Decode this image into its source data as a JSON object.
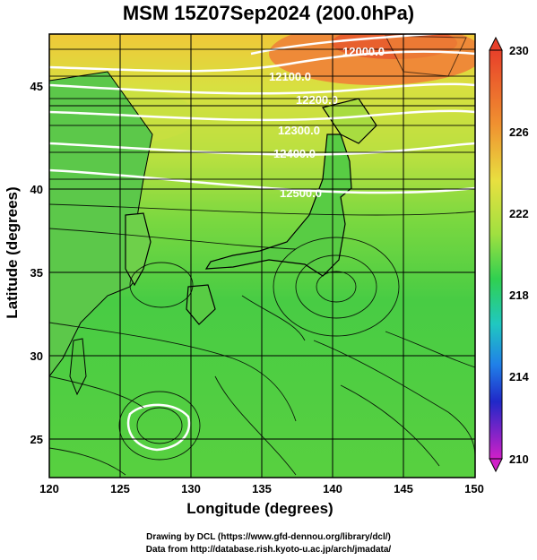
{
  "title": "MSM 15Z07Sep2024 (200.0hPa)",
  "x_axis": {
    "label": "Longitude (degrees)",
    "ticks": [
      "120",
      "125",
      "130",
      "135",
      "140",
      "145",
      "150"
    ]
  },
  "y_axis": {
    "label": "Latitude  (degrees)",
    "ticks": [
      "25",
      "30",
      "35",
      "40",
      "45"
    ]
  },
  "colorbar": {
    "ticks": [
      "230",
      "226",
      "222",
      "218",
      "214",
      "210"
    ]
  },
  "contour_labels": [
    "12000.0",
    "12100.0",
    "12200.0",
    "12300.0",
    "12400.0",
    "12500.0"
  ],
  "footer": {
    "line1": "Drawing by DCL (https://www.gfd-dennou.org/library/dcl/)",
    "line2": "Data from http://database.rish.kyoto-u.ac.jp/arch/jmadata/"
  },
  "chart_data": {
    "type": "heatmap",
    "title": "MSM 15Z07Sep2024 (200.0hPa)",
    "xlabel": "Longitude (degrees)",
    "ylabel": "Latitude  (degrees)",
    "xlim": [
      120,
      150
    ],
    "ylim": [
      22.5,
      47.5
    ],
    "colorbar_range": [
      210,
      230
    ],
    "colorbar_ticks": [
      230,
      226,
      222,
      218,
      214,
      210
    ],
    "colors": {
      "high": "#e8502a",
      "mid": "#44d23a",
      "low": "#c020c0"
    },
    "contour_labels": [
      12000,
      12100,
      12200,
      12300,
      12400,
      12500
    ],
    "overlay": "streamlines"
  }
}
